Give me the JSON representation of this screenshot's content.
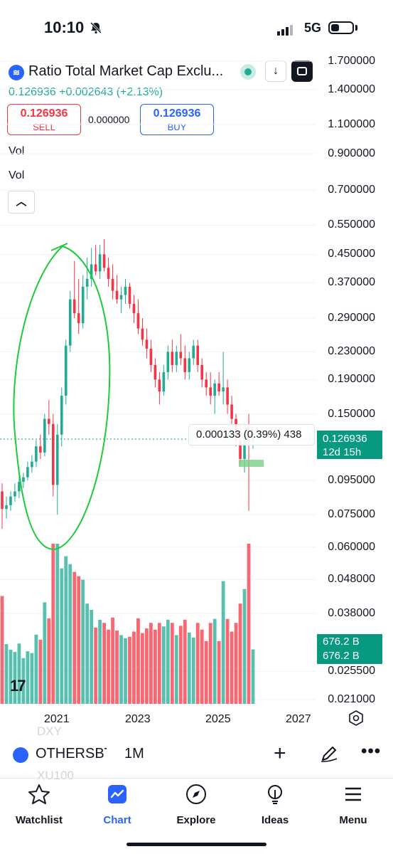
{
  "status_bar": {
    "time": "10:10",
    "network": "5G",
    "icons": [
      "bell-slash-icon",
      "signal-icon",
      "battery-icon"
    ]
  },
  "header": {
    "symbol_title": "Ratio Total Market Cap Exclu...",
    "price_change": "0.126936 +0.002643 (+2.13%)",
    "sell": {
      "value": "0.126936",
      "label": "SELL"
    },
    "spread": "0.000000",
    "buy": {
      "value": "0.126936",
      "label": "BUY"
    },
    "indicators": [
      "Vol",
      "Vol"
    ],
    "colors": {
      "up": "#22ab94",
      "down": "#f23645",
      "accent": "#2962ff"
    }
  },
  "price_axis": [
    "1.700000",
    "1.400000",
    "1.100000",
    "0.900000",
    "0.700000",
    "0.550000",
    "0.450000",
    "0.370000",
    "0.290000",
    "0.230000",
    "0.190000",
    "0.150000",
    "0.095000",
    "0.075000",
    "0.060000",
    "0.048000",
    "0.038000",
    "0.025500",
    "0.021000"
  ],
  "price_tag": {
    "price": "0.126936",
    "countdown": "12d 15h"
  },
  "volume_tag": {
    "line1": "676.2 B",
    "line2": "676.2 B"
  },
  "measure_label": "0.000133 (0.39%) 438",
  "time_axis": [
    "2021",
    "2023",
    "2025",
    "2027"
  ],
  "chart_data": {
    "type": "candlestick",
    "interval": "1M",
    "scale": "log",
    "y_ticks": [
      1.7,
      1.4,
      1.1,
      0.9,
      0.7,
      0.55,
      0.45,
      0.37,
      0.29,
      0.23,
      0.19,
      0.15,
      0.095,
      0.075,
      0.06,
      0.048,
      0.038,
      0.0255,
      0.021
    ],
    "x_ticks": [
      "2021",
      "2023",
      "2025",
      "2027"
    ],
    "last_price": 0.126936,
    "candles": [
      {
        "o": 0.088,
        "h": 0.093,
        "l": 0.068,
        "c": 0.078
      },
      {
        "o": 0.078,
        "h": 0.085,
        "l": 0.073,
        "c": 0.08
      },
      {
        "o": 0.08,
        "h": 0.088,
        "l": 0.077,
        "c": 0.085
      },
      {
        "o": 0.085,
        "h": 0.093,
        "l": 0.082,
        "c": 0.088
      },
      {
        "o": 0.088,
        "h": 0.098,
        "l": 0.084,
        "c": 0.094
      },
      {
        "o": 0.094,
        "h": 0.1,
        "l": 0.09,
        "c": 0.097
      },
      {
        "o": 0.097,
        "h": 0.108,
        "l": 0.095,
        "c": 0.104
      },
      {
        "o": 0.104,
        "h": 0.113,
        "l": 0.1,
        "c": 0.108
      },
      {
        "o": 0.108,
        "h": 0.125,
        "l": 0.104,
        "c": 0.12
      },
      {
        "o": 0.12,
        "h": 0.13,
        "l": 0.11,
        "c": 0.115
      },
      {
        "o": 0.115,
        "h": 0.15,
        "l": 0.112,
        "c": 0.145
      },
      {
        "o": 0.145,
        "h": 0.165,
        "l": 0.13,
        "c": 0.14
      },
      {
        "o": 0.14,
        "h": 0.15,
        "l": 0.085,
        "c": 0.092
      },
      {
        "o": 0.092,
        "h": 0.14,
        "l": 0.075,
        "c": 0.13
      },
      {
        "o": 0.13,
        "h": 0.18,
        "l": 0.12,
        "c": 0.17
      },
      {
        "o": 0.17,
        "h": 0.25,
        "l": 0.16,
        "c": 0.24
      },
      {
        "o": 0.24,
        "h": 0.35,
        "l": 0.23,
        "c": 0.33
      },
      {
        "o": 0.33,
        "h": 0.43,
        "l": 0.29,
        "c": 0.3
      },
      {
        "o": 0.3,
        "h": 0.38,
        "l": 0.26,
        "c": 0.28
      },
      {
        "o": 0.28,
        "h": 0.39,
        "l": 0.27,
        "c": 0.36
      },
      {
        "o": 0.36,
        "h": 0.44,
        "l": 0.33,
        "c": 0.38
      },
      {
        "o": 0.38,
        "h": 0.47,
        "l": 0.36,
        "c": 0.42
      },
      {
        "o": 0.42,
        "h": 0.48,
        "l": 0.39,
        "c": 0.4
      },
      {
        "o": 0.4,
        "h": 0.48,
        "l": 0.38,
        "c": 0.45
      },
      {
        "o": 0.45,
        "h": 0.5,
        "l": 0.4,
        "c": 0.41
      },
      {
        "o": 0.41,
        "h": 0.44,
        "l": 0.36,
        "c": 0.38
      },
      {
        "o": 0.38,
        "h": 0.42,
        "l": 0.33,
        "c": 0.35
      },
      {
        "o": 0.35,
        "h": 0.39,
        "l": 0.32,
        "c": 0.33
      },
      {
        "o": 0.33,
        "h": 0.36,
        "l": 0.3,
        "c": 0.34
      },
      {
        "o": 0.34,
        "h": 0.38,
        "l": 0.32,
        "c": 0.36
      },
      {
        "o": 0.36,
        "h": 0.37,
        "l": 0.31,
        "c": 0.32
      },
      {
        "o": 0.32,
        "h": 0.34,
        "l": 0.28,
        "c": 0.3
      },
      {
        "o": 0.3,
        "h": 0.33,
        "l": 0.26,
        "c": 0.27
      },
      {
        "o": 0.27,
        "h": 0.29,
        "l": 0.24,
        "c": 0.25
      },
      {
        "o": 0.25,
        "h": 0.27,
        "l": 0.22,
        "c": 0.235
      },
      {
        "o": 0.235,
        "h": 0.25,
        "l": 0.2,
        "c": 0.21
      },
      {
        "o": 0.21,
        "h": 0.22,
        "l": 0.18,
        "c": 0.19
      },
      {
        "o": 0.19,
        "h": 0.2,
        "l": 0.16,
        "c": 0.175
      },
      {
        "o": 0.175,
        "h": 0.21,
        "l": 0.17,
        "c": 0.2
      },
      {
        "o": 0.2,
        "h": 0.24,
        "l": 0.19,
        "c": 0.23
      },
      {
        "o": 0.23,
        "h": 0.25,
        "l": 0.2,
        "c": 0.21
      },
      {
        "o": 0.21,
        "h": 0.24,
        "l": 0.2,
        "c": 0.23
      },
      {
        "o": 0.23,
        "h": 0.26,
        "l": 0.21,
        "c": 0.22
      },
      {
        "o": 0.22,
        "h": 0.24,
        "l": 0.19,
        "c": 0.2
      },
      {
        "o": 0.2,
        "h": 0.23,
        "l": 0.19,
        "c": 0.22
      },
      {
        "o": 0.22,
        "h": 0.25,
        "l": 0.21,
        "c": 0.24
      },
      {
        "o": 0.24,
        "h": 0.25,
        "l": 0.2,
        "c": 0.21
      },
      {
        "o": 0.21,
        "h": 0.22,
        "l": 0.18,
        "c": 0.19
      },
      {
        "o": 0.19,
        "h": 0.2,
        "l": 0.17,
        "c": 0.18
      },
      {
        "o": 0.18,
        "h": 0.2,
        "l": 0.16,
        "c": 0.17
      },
      {
        "o": 0.17,
        "h": 0.19,
        "l": 0.15,
        "c": 0.185
      },
      {
        "o": 0.185,
        "h": 0.2,
        "l": 0.17,
        "c": 0.175
      },
      {
        "o": 0.175,
        "h": 0.23,
        "l": 0.16,
        "c": 0.18
      },
      {
        "o": 0.18,
        "h": 0.19,
        "l": 0.15,
        "c": 0.16
      },
      {
        "o": 0.16,
        "h": 0.17,
        "l": 0.14,
        "c": 0.145
      },
      {
        "o": 0.145,
        "h": 0.15,
        "l": 0.12,
        "c": 0.125
      },
      {
        "o": 0.125,
        "h": 0.14,
        "l": 0.105,
        "c": 0.11
      },
      {
        "o": 0.11,
        "h": 0.14,
        "l": 0.1,
        "c": 0.13
      },
      {
        "o": 0.13,
        "h": 0.15,
        "l": 0.077,
        "c": 0.124
      },
      {
        "o": 0.124,
        "h": 0.135,
        "l": 0.118,
        "c": 0.126936
      }
    ],
    "volume_colors": {
      "up": "#22ab94",
      "down": "#f23645"
    }
  },
  "bottom_bar": {
    "symbol": "OTHERSBTC",
    "interval": "1M",
    "faded_items": [
      "DXY",
      "XU100"
    ]
  },
  "nav": [
    {
      "label": "Watchlist",
      "icon": "star-icon"
    },
    {
      "label": "Chart",
      "icon": "chart-icon"
    },
    {
      "label": "Explore",
      "icon": "compass-icon"
    },
    {
      "label": "Ideas",
      "icon": "lightbulb-icon"
    },
    {
      "label": "Menu",
      "icon": "hamburger-icon"
    }
  ]
}
